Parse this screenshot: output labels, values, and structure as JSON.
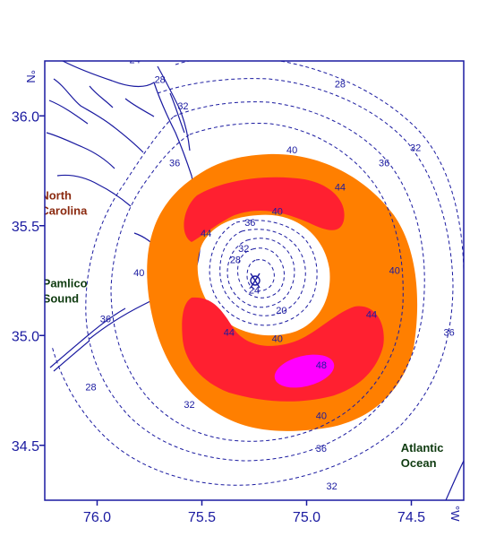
{
  "chart_data": {
    "type": "contour-map",
    "title": "",
    "xlabel": "",
    "ylabel": "",
    "x_unit": "°W",
    "y_unit": "°N",
    "xlim": [
      76.25,
      74.25
    ],
    "ylim": [
      34.25,
      36.25
    ],
    "x_ticks": [
      {
        "value": 76.0,
        "label": "76.0"
      },
      {
        "value": 75.5,
        "label": "75.5"
      },
      {
        "value": 75.0,
        "label": "75.0"
      },
      {
        "value": 74.5,
        "label": "74.5"
      }
    ],
    "y_ticks": [
      {
        "value": 36.0,
        "label": "36.0"
      },
      {
        "value": 35.5,
        "label": "35.5"
      },
      {
        "value": 35.0,
        "label": "35.0"
      },
      {
        "value": 34.5,
        "label": "34.5"
      }
    ],
    "center": {
      "lon": 75.14,
      "lat": 35.27
    },
    "shaded_bands": [
      {
        "min": 40,
        "max": 44,
        "color": "#ff7f00"
      },
      {
        "min": 44,
        "max": 48,
        "color": "#ff2030"
      },
      {
        "min": 48,
        "max": null,
        "color": "#ff00ff"
      }
    ],
    "contour_labels": [
      {
        "text": "24",
        "lon": 75.82,
        "lat": 36.24
      },
      {
        "text": "28",
        "lon": 75.7,
        "lat": 36.15
      },
      {
        "text": "32",
        "lon": 75.59,
        "lat": 36.03
      },
      {
        "text": "28",
        "lon": 74.84,
        "lat": 36.13
      },
      {
        "text": "32",
        "lon": 74.48,
        "lat": 35.84
      },
      {
        "text": "36",
        "lon": 74.63,
        "lat": 35.77
      },
      {
        "text": "36",
        "lon": 75.63,
        "lat": 35.77
      },
      {
        "text": "40",
        "lon": 75.07,
        "lat": 35.83
      },
      {
        "text": "44",
        "lon": 74.84,
        "lat": 35.66
      },
      {
        "text": "40",
        "lon": 75.14,
        "lat": 35.55
      },
      {
        "text": "36",
        "lon": 75.27,
        "lat": 35.5
      },
      {
        "text": "44",
        "lon": 75.48,
        "lat": 35.45
      },
      {
        "text": "32",
        "lon": 75.3,
        "lat": 35.38
      },
      {
        "text": "28",
        "lon": 75.34,
        "lat": 35.33
      },
      {
        "text": "40",
        "lon": 75.8,
        "lat": 35.27
      },
      {
        "text": "36",
        "lon": 75.96,
        "lat": 35.06
      },
      {
        "text": "24",
        "lon": 75.25,
        "lat": 35.19
      },
      {
        "text": "20",
        "lon": 75.12,
        "lat": 35.1
      },
      {
        "text": "40",
        "lon": 74.58,
        "lat": 35.28
      },
      {
        "text": "44",
        "lon": 75.37,
        "lat": 35.0
      },
      {
        "text": "44",
        "lon": 74.69,
        "lat": 35.08
      },
      {
        "text": "40",
        "lon": 75.14,
        "lat": 34.97
      },
      {
        "text": "36",
        "lon": 74.32,
        "lat": 35.0
      },
      {
        "text": "48",
        "lon": 74.93,
        "lat": 34.85
      },
      {
        "text": "40",
        "lon": 74.93,
        "lat": 34.62
      },
      {
        "text": "28",
        "lon": 76.03,
        "lat": 34.75
      },
      {
        "text": "32",
        "lon": 75.56,
        "lat": 34.67
      },
      {
        "text": "36",
        "lon": 74.93,
        "lat": 34.47
      },
      {
        "text": "32",
        "lon": 74.88,
        "lat": 34.3
      }
    ],
    "place_labels": [
      {
        "lines": [
          "North",
          "Carolina"
        ],
        "lon": 76.27,
        "lat": 35.62,
        "color": "#8b2a10"
      },
      {
        "lines": [
          "Pamlico",
          "Sound"
        ],
        "lon": 76.26,
        "lat": 35.22,
        "color": "#0f3b10"
      },
      {
        "lines": [
          "Atlantic",
          "Ocean"
        ],
        "lon": 74.55,
        "lat": 34.47,
        "color": "#0f3b10"
      }
    ],
    "grid": false,
    "legend": "none"
  }
}
